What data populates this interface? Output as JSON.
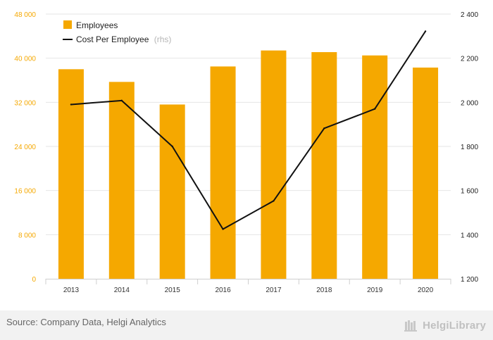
{
  "chart_data": {
    "type": "bar",
    "categories": [
      "2013",
      "2014",
      "2015",
      "2016",
      "2017",
      "2018",
      "2019",
      "2020"
    ],
    "series": [
      {
        "name": "Employees",
        "type": "bar",
        "axis": "left",
        "color": "#f5a800",
        "values": [
          38000,
          35700,
          31600,
          38500,
          41400,
          41100,
          40500,
          38300
        ]
      },
      {
        "name": "Cost Per Employee",
        "type": "line",
        "axis": "right",
        "color": "#111111",
        "values": [
          1990,
          2008,
          1800,
          1425,
          1553,
          1882,
          1970,
          2322
        ]
      }
    ],
    "left_axis": {
      "ticks": [
        "0",
        "8 000",
        "16 000",
        "24 000",
        "32 000",
        "40 000",
        "48 000"
      ],
      "range": [
        0,
        48000
      ]
    },
    "right_axis": {
      "ticks": [
        "1 200",
        "1 400",
        "1 600",
        "1 800",
        "2 000",
        "2 200",
        "2 400"
      ],
      "range": [
        1200,
        2400
      ]
    },
    "legend": {
      "position": "top-left",
      "note": "(rhs)"
    },
    "grid": true
  },
  "footer": {
    "source": "Source: Company Data, Helgi Analytics",
    "brand": "HelgiLibrary"
  }
}
